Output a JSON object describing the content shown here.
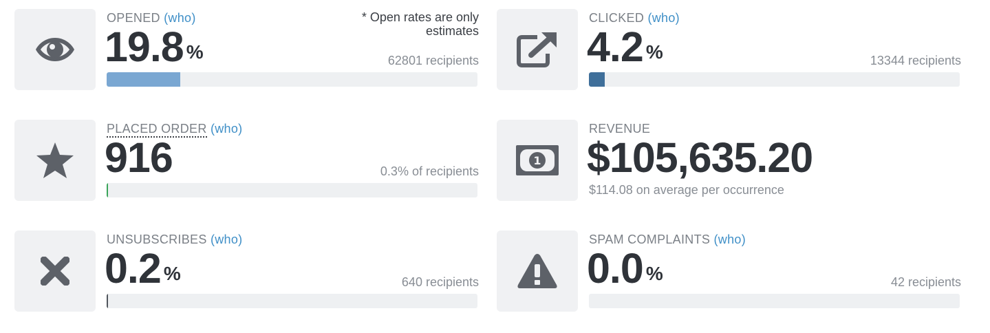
{
  "cards": {
    "opened": {
      "label": "OPENED",
      "who": "(who)",
      "value": "19.8",
      "unit": "%",
      "note": "* Open rates are only estimates",
      "recipients": "62801 recipients",
      "bar_percent": 19.8,
      "bar_color": "#7aa7d2",
      "icon": "eye-icon"
    },
    "clicked": {
      "label": "CLICKED",
      "who": "(who)",
      "value": "4.2",
      "unit": "%",
      "recipients": "13344 recipients",
      "bar_percent": 4.2,
      "bar_color": "#3f6f9a",
      "icon": "external-link-icon"
    },
    "placed_order": {
      "label": "PLACED ORDER",
      "who": "(who)",
      "value": "916",
      "recipients": "0.3% of recipients",
      "bar_percent": 0.3,
      "bar_color": "#3aa55a",
      "icon": "star-icon"
    },
    "revenue": {
      "label": "REVENUE",
      "value": "$105,635.20",
      "average": "$114.08 on average per occurrence",
      "icon": "money-icon"
    },
    "unsubscribes": {
      "label": "UNSUBSCRIBES",
      "who": "(who)",
      "value": "0.2",
      "unit": "%",
      "recipients": "640 recipients",
      "bar_percent": 0.2,
      "bar_color": "#50555c",
      "icon": "close-icon"
    },
    "spam_complaints": {
      "label": "SPAM COMPLAINTS",
      "who": "(who)",
      "value": "0.0",
      "unit": "%",
      "recipients": "42 recipients",
      "bar_percent": 0.0,
      "bar_color": "#50555c",
      "icon": "warning-icon"
    }
  }
}
